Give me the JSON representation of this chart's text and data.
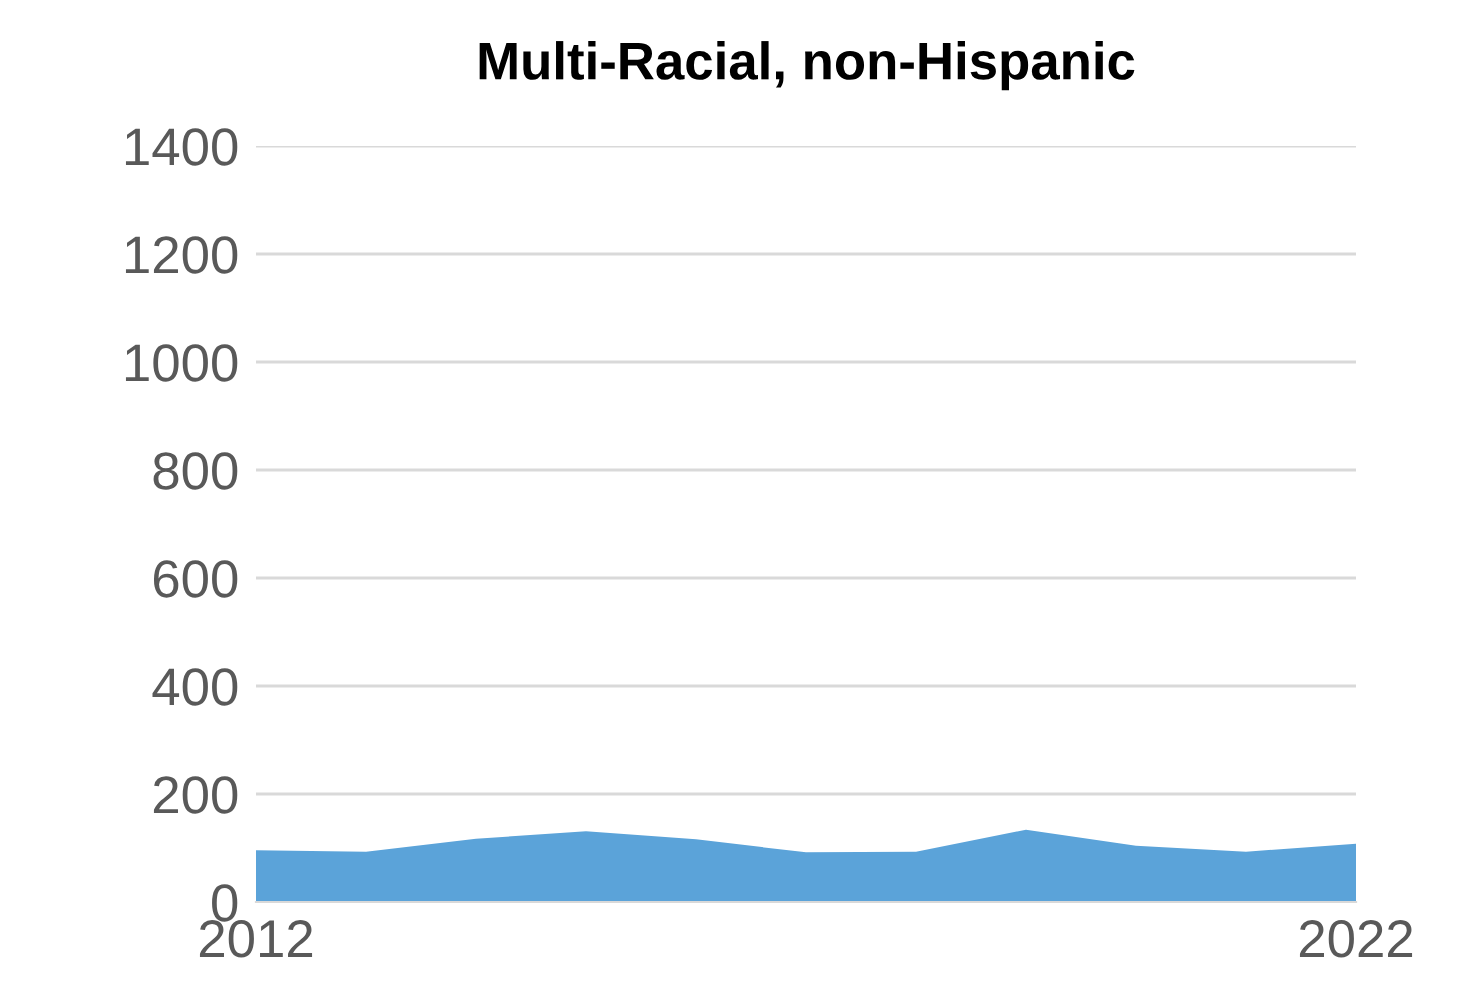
{
  "chart_data": {
    "type": "area",
    "title": "Multi-Racial, non-Hispanic",
    "categories": [
      "2012",
      null,
      null,
      null,
      null,
      null,
      null,
      null,
      null,
      null,
      "2022"
    ],
    "values": [
      96,
      93,
      117,
      131,
      116,
      92,
      93,
      134,
      104,
      93,
      108
    ],
    "color": "#5ba3d9",
    "ylim": [
      0,
      1400
    ],
    "yticks": [
      0,
      200,
      400,
      600,
      800,
      1000,
      1200,
      1400
    ],
    "grid": "y"
  }
}
